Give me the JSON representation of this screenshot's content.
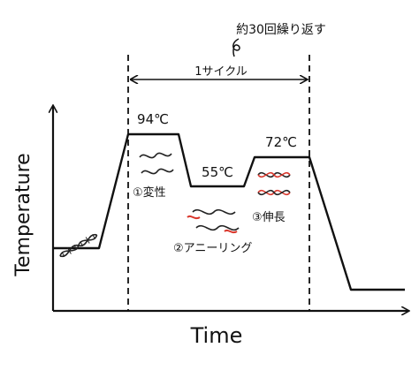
{
  "diagram": {
    "annotation_repeat": "約30回繰り返す",
    "cycle_label": "1サイクル",
    "axis": {
      "x_title": "Time",
      "y_title": "Temperature"
    },
    "steps": [
      {
        "temperature": "94℃",
        "label": "①変性"
      },
      {
        "temperature": "55℃",
        "label": "②アニーリング"
      },
      {
        "temperature": "72℃",
        "label": "③伸長"
      }
    ],
    "colors": {
      "line": "#111111",
      "strand_primary": "#222222",
      "primer_red": "#d9362b"
    }
  }
}
